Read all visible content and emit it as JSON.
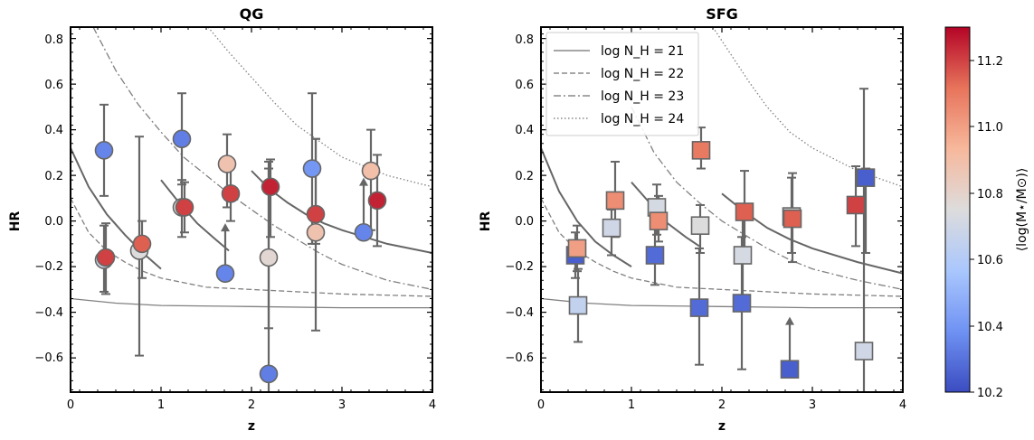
{
  "chart_data": [
    {
      "type": "scatter",
      "title": "QG",
      "xlabel": "z",
      "ylabel": "HR",
      "xlim": [
        0,
        4
      ],
      "ylim": [
        -0.75,
        0.85
      ],
      "xticks": [
        "0",
        "1",
        "2",
        "3",
        "4"
      ],
      "yticks": [
        "−0.6",
        "−0.4",
        "−0.2",
        "0.0",
        "0.2",
        "0.4",
        "0.6",
        "0.8"
      ],
      "marker": "circle",
      "points": [
        {
          "x": 0.37,
          "y": 0.31,
          "ylo": 0.11,
          "yhi": 0.51,
          "mass": 10.35
        },
        {
          "x": 0.37,
          "y": -0.17,
          "ylo": -0.31,
          "yhi": -0.02,
          "mass": 10.7
        },
        {
          "x": 0.39,
          "y": -0.16,
          "ylo": -0.32,
          "yhi": -0.01,
          "mass": 11.2
        },
        {
          "x": 0.76,
          "y": -0.13,
          "ylo": -0.59,
          "yhi": 0.37,
          "mass": 10.75
        },
        {
          "x": 0.79,
          "y": -0.1,
          "ylo": -0.25,
          "yhi": 0.0,
          "mass": 11.15
        },
        {
          "x": 1.23,
          "y": 0.36,
          "ylo": 0.16,
          "yhi": 0.56,
          "mass": 10.33
        },
        {
          "x": 1.23,
          "y": 0.06,
          "ylo": -0.07,
          "yhi": 0.18,
          "mass": 10.75
        },
        {
          "x": 1.26,
          "y": 0.06,
          "ylo": -0.05,
          "yhi": 0.17,
          "mass": 11.2
        },
        {
          "x": 1.71,
          "y": -0.23,
          "mass": 10.35,
          "lower_limit": true,
          "arrow_to": -0.01
        },
        {
          "x": 1.73,
          "y": 0.25,
          "ylo": 0.06,
          "yhi": 0.38,
          "mass": 10.88
        },
        {
          "x": 1.77,
          "y": 0.12,
          "ylo": 0.0,
          "yhi": 0.24,
          "mass": 11.2
        },
        {
          "x": 2.19,
          "y": -0.67,
          "ylo": -0.75,
          "yhi": 0.23,
          "mass": 10.33
        },
        {
          "x": 2.19,
          "y": -0.16,
          "ylo": -0.47,
          "yhi": 0.26,
          "mass": 10.78
        },
        {
          "x": 2.21,
          "y": 0.15,
          "ylo": -0.07,
          "yhi": 0.27,
          "mass": 11.25
        },
        {
          "x": 2.67,
          "y": 0.23,
          "ylo": -0.1,
          "yhi": 0.56,
          "mass": 10.4
        },
        {
          "x": 2.71,
          "y": -0.05,
          "ylo": -0.48,
          "yhi": 0.36,
          "mass": 10.88
        },
        {
          "x": 2.71,
          "y": 0.03,
          "ylo": -0.1,
          "yhi": 0.36,
          "mass": 11.2
        },
        {
          "x": 3.24,
          "y": -0.05,
          "mass": 10.35,
          "lower_limit": true,
          "arrow_to": 0.19
        },
        {
          "x": 3.32,
          "y": 0.22,
          "ylo": -0.04,
          "yhi": 0.4,
          "mass": 10.9
        },
        {
          "x": 3.39,
          "y": 0.09,
          "ylo": -0.11,
          "yhi": 0.29,
          "mass": 11.25
        }
      ],
      "curves": [
        {
          "segments": [
            [
              [
                0.0,
                0.32
              ],
              [
                0.2,
                0.15
              ],
              [
                0.4,
                0.03
              ],
              [
                0.6,
                -0.06
              ],
              [
                0.8,
                -0.14
              ],
              [
                1.0,
                -0.21
              ]
            ],
            [
              [
                1.0,
                0.18
              ],
              [
                1.2,
                0.08
              ],
              [
                1.4,
                -0.01
              ],
              [
                1.6,
                -0.08
              ],
              [
                1.75,
                -0.13
              ]
            ],
            [
              [
                2.0,
                0.22
              ],
              [
                2.2,
                0.14
              ],
              [
                2.4,
                0.08
              ],
              [
                2.6,
                0.03
              ],
              [
                2.8,
                -0.01
              ],
              [
                3.0,
                -0.04
              ],
              [
                3.5,
                -0.1
              ],
              [
                4.0,
                -0.14
              ]
            ],
            [
              [
                0.0,
                -0.34
              ],
              [
                0.5,
                -0.36
              ],
              [
                1.0,
                -0.37
              ],
              [
                2.0,
                -0.375
              ],
              [
                3.0,
                -0.38
              ],
              [
                4.0,
                -0.38
              ]
            ]
          ],
          "style": "solid"
        },
        {
          "segments": [
            [
              [
                0.0,
                0.1
              ],
              [
                0.2,
                -0.05
              ],
              [
                0.4,
                -0.13
              ],
              [
                0.6,
                -0.18
              ],
              [
                0.8,
                -0.22
              ],
              [
                1.0,
                -0.25
              ],
              [
                1.5,
                -0.29
              ],
              [
                2.0,
                -0.3
              ],
              [
                3.0,
                -0.32
              ],
              [
                4.0,
                -0.33
              ]
            ]
          ],
          "style": "dashed"
        },
        {
          "segments": [
            [
              [
                0.25,
                0.85
              ],
              [
                0.5,
                0.66
              ],
              [
                0.75,
                0.51
              ],
              [
                1.0,
                0.39
              ],
              [
                1.25,
                0.28
              ],
              [
                1.5,
                0.2
              ],
              [
                1.75,
                0.12
              ],
              [
                2.0,
                0.05
              ],
              [
                2.25,
                -0.02
              ],
              [
                2.5,
                -0.08
              ],
              [
                2.75,
                -0.14
              ],
              [
                3.0,
                -0.19
              ],
              [
                3.5,
                -0.26
              ],
              [
                4.0,
                -0.3
              ]
            ]
          ],
          "style": "dashdot"
        },
        {
          "segments": [
            [
              [
                1.52,
                0.85
              ],
              [
                1.75,
                0.74
              ],
              [
                2.0,
                0.63
              ],
              [
                2.25,
                0.52
              ],
              [
                2.5,
                0.42
              ],
              [
                2.75,
                0.35
              ],
              [
                3.0,
                0.28
              ],
              [
                3.5,
                0.2
              ],
              [
                4.0,
                0.15
              ]
            ]
          ],
          "style": "dotted"
        }
      ]
    },
    {
      "type": "scatter",
      "title": "SFG",
      "xlabel": "z",
      "ylabel": "HR",
      "xlim": [
        0,
        4
      ],
      "ylim": [
        -0.75,
        0.85
      ],
      "xticks": [
        "0",
        "1",
        "2",
        "3",
        "4"
      ],
      "yticks": [
        "−0.6",
        "−0.4",
        "−0.2",
        "0.0",
        "0.2",
        "0.4",
        "0.6",
        "0.8"
      ],
      "marker": "square",
      "legend": {
        "placement": "upper-left",
        "entries": [
          {
            "label": "log N_H = 21",
            "style": "solid"
          },
          {
            "label": "log N_H = 22",
            "style": "dashed"
          },
          {
            "label": "log N_H = 23",
            "style": "dashdot"
          },
          {
            "label": "log N_H = 24",
            "style": "dotted"
          }
        ]
      },
      "points": [
        {
          "x": 0.38,
          "y": -0.15,
          "ylo": -0.25,
          "yhi": -0.05,
          "mass": 10.25
        },
        {
          "x": 0.4,
          "y": -0.12,
          "ylo": -0.22,
          "yhi": -0.02,
          "mass": 11.0
        },
        {
          "x": 0.41,
          "y": -0.37,
          "ylo": -0.53,
          "yhi": -0.21,
          "mass": 10.65
        },
        {
          "x": 0.78,
          "y": -0.03,
          "ylo": -0.15,
          "yhi": 0.05,
          "mass": 10.7
        },
        {
          "x": 0.82,
          "y": 0.09,
          "ylo": -0.07,
          "yhi": 0.26,
          "mass": 11.05
        },
        {
          "x": 1.26,
          "y": -0.15,
          "ylo": -0.28,
          "yhi": -0.02,
          "mass": 10.28
        },
        {
          "x": 1.28,
          "y": 0.06,
          "ylo": -0.06,
          "yhi": 0.16,
          "mass": 10.72
        },
        {
          "x": 1.3,
          "y": 0.0,
          "ylo": -0.09,
          "yhi": 0.11,
          "mass": 11.05
        },
        {
          "x": 1.75,
          "y": -0.38,
          "ylo": -0.63,
          "yhi": -0.12,
          "mass": 10.28
        },
        {
          "x": 1.76,
          "y": -0.02,
          "ylo": -0.14,
          "yhi": 0.07,
          "mass": 10.75
        },
        {
          "x": 1.77,
          "y": 0.31,
          "ylo": 0.23,
          "yhi": 0.41,
          "mass": 11.1
        },
        {
          "x": 2.22,
          "y": -0.36,
          "ylo": -0.65,
          "yhi": -0.07,
          "mass": 10.28
        },
        {
          "x": 2.23,
          "y": -0.15,
          "ylo": -0.35,
          "yhi": 0.05,
          "mass": 10.72
        },
        {
          "x": 2.25,
          "y": 0.04,
          "ylo": -0.15,
          "yhi": 0.22,
          "mass": 11.15
        },
        {
          "x": 2.75,
          "y": -0.65,
          "mass": 10.25,
          "lower_limit": true,
          "arrow_to": -0.42
        },
        {
          "x": 2.77,
          "y": 0.02,
          "ylo": -0.14,
          "yhi": 0.19,
          "mass": 10.75
        },
        {
          "x": 2.78,
          "y": 0.01,
          "ylo": -0.18,
          "yhi": 0.21,
          "mass": 11.15
        },
        {
          "x": 3.48,
          "y": 0.07,
          "ylo": -0.11,
          "yhi": 0.24,
          "mass": 11.2
        },
        {
          "x": 3.57,
          "y": -0.57,
          "ylo": -0.75,
          "yhi": 0.58,
          "mass": 10.7
        },
        {
          "x": 3.59,
          "y": 0.19,
          "ylo": -0.14,
          "yhi": 0.23,
          "mass": 10.25
        }
      ],
      "curves": [
        {
          "segments": [
            [
              [
                0.0,
                0.32
              ],
              [
                0.2,
                0.13
              ],
              [
                0.4,
                0.0
              ],
              [
                0.6,
                -0.09
              ],
              [
                0.8,
                -0.15
              ],
              [
                1.0,
                -0.2
              ]
            ],
            [
              [
                1.0,
                0.17
              ],
              [
                1.2,
                0.08
              ],
              [
                1.4,
                -0.01
              ],
              [
                1.6,
                -0.07
              ],
              [
                1.75,
                -0.11
              ]
            ],
            [
              [
                2.0,
                0.12
              ],
              [
                2.25,
                0.04
              ],
              [
                2.5,
                -0.03
              ],
              [
                2.75,
                -0.08
              ],
              [
                3.0,
                -0.12
              ],
              [
                3.5,
                -0.18
              ],
              [
                4.0,
                -0.23
              ]
            ],
            [
              [
                0.0,
                -0.34
              ],
              [
                0.5,
                -0.36
              ],
              [
                1.0,
                -0.37
              ],
              [
                2.0,
                -0.375
              ],
              [
                3.0,
                -0.38
              ],
              [
                4.0,
                -0.38
              ]
            ]
          ],
          "style": "solid"
        },
        {
          "segments": [
            [
              [
                0.0,
                0.1
              ],
              [
                0.2,
                -0.05
              ],
              [
                0.4,
                -0.13
              ],
              [
                0.6,
                -0.18
              ],
              [
                0.8,
                -0.22
              ],
              [
                1.0,
                -0.25
              ],
              [
                1.5,
                -0.29
              ],
              [
                2.0,
                -0.3
              ],
              [
                3.0,
                -0.32
              ],
              [
                4.0,
                -0.33
              ]
            ]
          ],
          "style": "dashed"
        },
        {
          "segments": [
            [
              [
                1.0,
                0.5
              ],
              [
                1.25,
                0.3
              ],
              [
                1.5,
                0.17
              ],
              [
                1.75,
                0.08
              ],
              [
                2.0,
                0.0
              ],
              [
                2.25,
                -0.06
              ],
              [
                2.5,
                -0.12
              ],
              [
                2.75,
                -0.17
              ],
              [
                3.0,
                -0.21
              ],
              [
                3.5,
                -0.26
              ],
              [
                4.0,
                -0.3
              ]
            ]
          ],
          "style": "dashdot"
        },
        {
          "segments": [
            [
              [
                1.9,
                0.85
              ],
              [
                2.1,
                0.73
              ],
              [
                2.3,
                0.61
              ],
              [
                2.5,
                0.5
              ],
              [
                2.75,
                0.39
              ],
              [
                3.0,
                0.32
              ],
              [
                3.5,
                0.22
              ],
              [
                4.0,
                0.15
              ]
            ]
          ],
          "style": "dotted"
        }
      ]
    }
  ],
  "colorbar": {
    "label": "⟨log(M⋆/M⊙)⟩",
    "range": [
      10.2,
      11.3
    ],
    "ticks": [
      "10.2",
      "10.4",
      "10.6",
      "10.8",
      "11.0",
      "11.2"
    ],
    "colors": [
      "#3b4cc0",
      "#6f92f3",
      "#aac7fd",
      "#dddcdc",
      "#f7b89c",
      "#e7745b",
      "#b40426"
    ]
  }
}
